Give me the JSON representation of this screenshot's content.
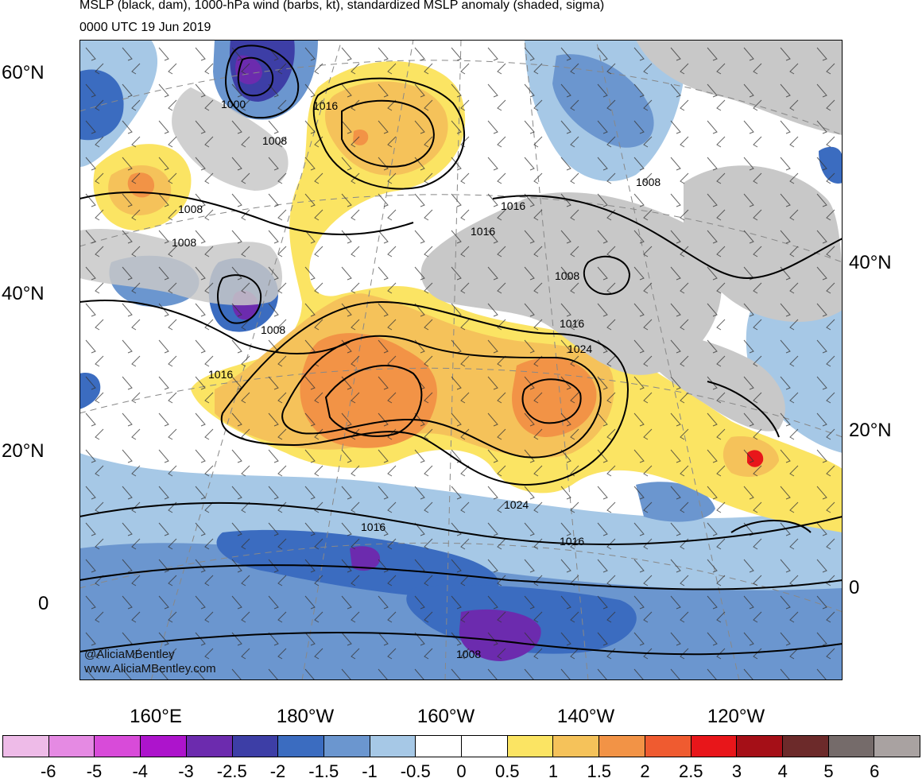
{
  "header": {
    "title": "MSLP (black, dam), 1000-hPa wind (barbs, kt), standardized MSLP anomaly (shaded, sigma)",
    "valid_time": "0000 UTC 19 Jun 2019"
  },
  "map": {
    "lat_labels_left": [
      "60°N",
      "40°N",
      "20°N",
      "0"
    ],
    "lat_labels_right": [
      "40°N",
      "20°N",
      "0"
    ],
    "lon_labels": [
      "160°E",
      "180°W",
      "160°W",
      "140°W",
      "120°W"
    ],
    "isobar_labels": [
      "1000",
      "1016",
      "1008",
      "1008",
      "1008",
      "1008",
      "1008",
      "1016",
      "1016",
      "1008",
      "1016",
      "1024",
      "1016",
      "1024",
      "1016",
      "1016",
      "1008"
    ],
    "credits": [
      "@AliciaMBentley",
      "www.AliciaMBentley.com"
    ]
  },
  "colorbar": {
    "colors": [
      "#eebbe8",
      "#e58ae3",
      "#d84bd9",
      "#ad14cc",
      "#6c2bae",
      "#3d3ea6",
      "#3b6cc0",
      "#6b96cf",
      "#a6c8e6",
      "#ffffff",
      "#ffffff",
      "#fbe463",
      "#f5c25a",
      "#f29346",
      "#ef5b30",
      "#e8161a",
      "#a50f17",
      "#6c2a2a",
      "#756b6a",
      "#a9a2a1"
    ],
    "labels": [
      "-6",
      "-5",
      "-4",
      "-3",
      "-2.5",
      "-2",
      "-1.5",
      "-1",
      "-0.5",
      "0",
      "0.5",
      "1",
      "1.5",
      "2",
      "2.5",
      "3",
      "4",
      "5",
      "6"
    ]
  }
}
